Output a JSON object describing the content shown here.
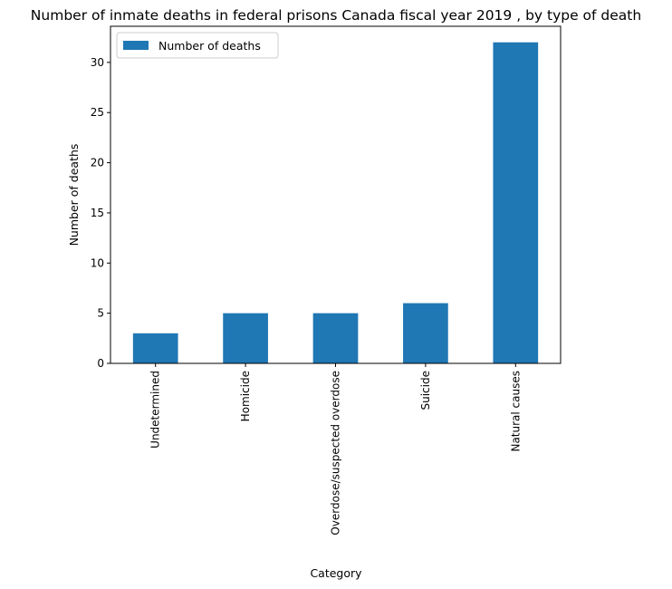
{
  "chart_data": {
    "type": "bar",
    "title": "Number of inmate deaths in federal prisons Canada fiscal year 2019 , by type of death",
    "xlabel": "Category",
    "ylabel": "Number of deaths",
    "categories": [
      "Undetermined",
      "Homicide",
      "Overdose/suspected overdose",
      "Suicide",
      "Natural causes"
    ],
    "series": [
      {
        "name": "Number of deaths",
        "values": [
          3,
          5,
          5,
          6,
          32
        ],
        "color": "#1f77b4"
      }
    ],
    "ylim": [
      0,
      33.6
    ],
    "yticks": [
      0,
      5,
      10,
      15,
      20,
      25,
      30
    ],
    "grid": false,
    "legend_position": "top-left"
  }
}
